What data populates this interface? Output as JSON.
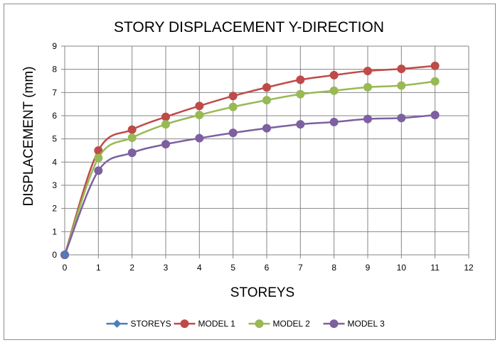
{
  "chart_data": {
    "type": "line",
    "title": "STORY DISPLACEMENT Y-DIRECTION",
    "xlabel": "STOREYS",
    "ylabel": "DISPLACEMENT (mm)",
    "xlim": [
      0,
      12
    ],
    "ylim": [
      0,
      9
    ],
    "xticks": [
      "0",
      "1",
      "2",
      "3",
      "4",
      "5",
      "6",
      "7",
      "8",
      "9",
      "10",
      "11",
      "12"
    ],
    "yticks": [
      "0",
      "1",
      "2",
      "3",
      "4",
      "5",
      "6",
      "7",
      "8",
      "9"
    ],
    "grid": true,
    "legend_position": "bottom",
    "smooth": true,
    "x": [
      0,
      1,
      2,
      3,
      4,
      5,
      6,
      7,
      8,
      9,
      10,
      11
    ],
    "series": [
      {
        "name": "STOREYS",
        "color": "#4a7ebb",
        "marker": "diamond",
        "x": [
          0
        ],
        "values": [
          0
        ]
      },
      {
        "name": "MODEL 1",
        "color": "#be4b48",
        "marker": "circle",
        "values": [
          0,
          4.5,
          5.4,
          5.95,
          6.42,
          6.85,
          7.22,
          7.55,
          7.75,
          7.93,
          8.02,
          8.15
        ]
      },
      {
        "name": "MODEL 2",
        "color": "#98b954",
        "marker": "circle",
        "values": [
          0,
          4.18,
          5.05,
          5.63,
          6.03,
          6.38,
          6.67,
          6.93,
          7.08,
          7.23,
          7.3,
          7.48
        ]
      },
      {
        "name": "MODEL 3",
        "color": "#7d60a0",
        "marker": "circle",
        "values": [
          0,
          3.63,
          4.4,
          4.77,
          5.03,
          5.26,
          5.46,
          5.63,
          5.73,
          5.86,
          5.9,
          6.03
        ]
      }
    ]
  }
}
